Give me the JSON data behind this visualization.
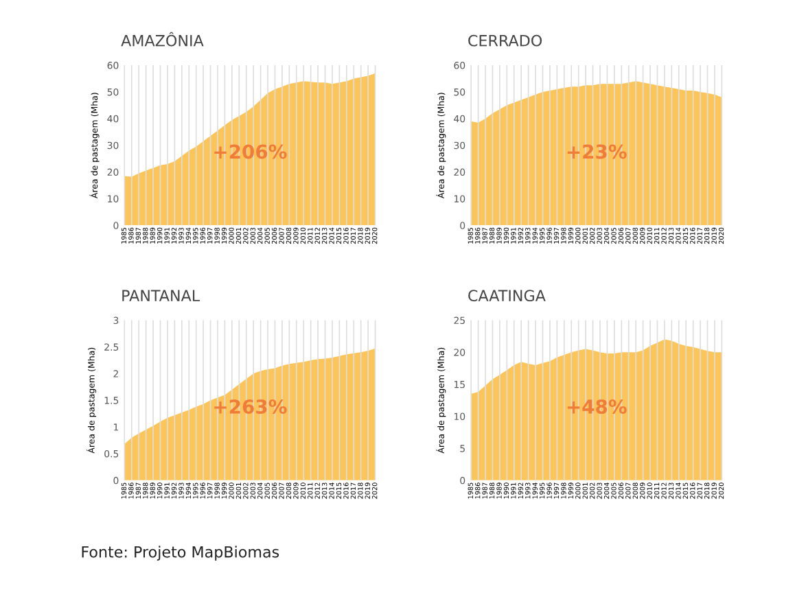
{
  "chart_data": [
    {
      "type": "area",
      "title": "AMAZÔNIA",
      "ylabel": "Área de pastagem (Mha)",
      "categories": [
        "1985",
        "1986",
        "1987",
        "1988",
        "1989",
        "1990",
        "1991",
        "1992",
        "1993",
        "1994",
        "1995",
        "1996",
        "1997",
        "1998",
        "1999",
        "2000",
        "2001",
        "2002",
        "2003",
        "2004",
        "2005",
        "2006",
        "2007",
        "2008",
        "2009",
        "2010",
        "2011",
        "2012",
        "2013",
        "2014",
        "2015",
        "2016",
        "2017",
        "2018",
        "2019",
        "2020"
      ],
      "series": [
        {
          "color": "#fcc55a",
          "values": [
            18.5,
            18.2,
            19.5,
            20.5,
            21.5,
            22.5,
            23,
            24,
            26,
            28,
            29.5,
            31.5,
            33.5,
            35.5,
            37.5,
            39.5,
            41,
            42.5,
            44.5,
            47,
            49.5,
            51,
            52,
            53,
            53.5,
            54,
            53.8,
            53.5,
            53.5,
            53,
            53.5,
            54,
            55,
            55.5,
            56,
            57
          ]
        }
      ],
      "ylim": [
        0,
        60
      ],
      "yticks": [
        0,
        10,
        20,
        30,
        40,
        50,
        60
      ],
      "grid": "x",
      "annotations": [
        "+206%"
      ]
    },
    {
      "type": "area",
      "title": "CERRADO",
      "ylabel": "Área de pastagem (Mha)",
      "categories": [
        "1985",
        "1986",
        "1987",
        "1988",
        "1989",
        "1990",
        "1991",
        "1992",
        "1993",
        "1994",
        "1995",
        "1996",
        "1997",
        "1998",
        "1999",
        "2000",
        "2001",
        "2002",
        "2003",
        "2004",
        "2005",
        "2006",
        "2007",
        "2008",
        "2009",
        "2010",
        "2011",
        "2012",
        "2013",
        "2014",
        "2015",
        "2016",
        "2017",
        "2018",
        "2019",
        "2020"
      ],
      "series": [
        {
          "color": "#fcc55a",
          "values": [
            39,
            38.5,
            40,
            42,
            43.5,
            45,
            46,
            47,
            48,
            49,
            50,
            50.5,
            51,
            51.5,
            52,
            52,
            52.5,
            52.5,
            53,
            53,
            53,
            53,
            53.5,
            54,
            53.5,
            53,
            52.5,
            52,
            51.5,
            51,
            50.5,
            50.5,
            50,
            49.5,
            49,
            48
          ]
        }
      ],
      "ylim": [
        0,
        60
      ],
      "yticks": [
        0,
        10,
        20,
        30,
        40,
        50,
        60
      ],
      "grid": "x",
      "annotations": [
        "+23%"
      ]
    },
    {
      "type": "area",
      "title": "PANTANAL",
      "ylabel": "Área de pastagem (Mha)",
      "categories": [
        "1985",
        "1986",
        "1987",
        "1988",
        "1989",
        "1990",
        "1991",
        "1992",
        "1993",
        "1994",
        "1995",
        "1996",
        "1997",
        "1998",
        "1999",
        "2000",
        "2001",
        "2002",
        "2003",
        "2004",
        "2005",
        "2006",
        "2007",
        "2008",
        "2009",
        "2010",
        "2011",
        "2012",
        "2013",
        "2014",
        "2015",
        "2016",
        "2017",
        "2018",
        "2019",
        "2020"
      ],
      "series": [
        {
          "color": "#fcc55a",
          "values": [
            0.68,
            0.8,
            0.88,
            0.95,
            1.02,
            1.1,
            1.17,
            1.22,
            1.27,
            1.32,
            1.38,
            1.43,
            1.5,
            1.55,
            1.6,
            1.7,
            1.8,
            1.9,
            2.0,
            2.05,
            2.08,
            2.1,
            2.15,
            2.18,
            2.2,
            2.22,
            2.25,
            2.27,
            2.28,
            2.3,
            2.33,
            2.36,
            2.38,
            2.4,
            2.43,
            2.47
          ]
        }
      ],
      "ylim": [
        0,
        3
      ],
      "yticks": [
        0,
        0.5,
        1,
        1.5,
        2,
        2.5,
        3
      ],
      "grid": "x",
      "annotations": [
        "+263%"
      ]
    },
    {
      "type": "area",
      "title": "CAATINGA",
      "ylabel": "Área de pastagem (Mha)",
      "categories": [
        "1985",
        "1986",
        "1987",
        "1988",
        "1989",
        "1990",
        "1991",
        "1992",
        "1993",
        "1994",
        "1995",
        "1996",
        "1997",
        "1998",
        "1999",
        "2000",
        "2001",
        "2002",
        "2003",
        "2004",
        "2005",
        "2006",
        "2007",
        "2008",
        "2009",
        "2010",
        "2011",
        "2012",
        "2013",
        "2014",
        "2015",
        "2016",
        "2017",
        "2018",
        "2019",
        "2020"
      ],
      "series": [
        {
          "color": "#fcc55a",
          "values": [
            13.5,
            13.8,
            14.8,
            15.8,
            16.5,
            17.2,
            18,
            18.5,
            18.2,
            18,
            18.3,
            18.6,
            19.2,
            19.6,
            20,
            20.3,
            20.5,
            20.3,
            20,
            19.8,
            19.8,
            20,
            20,
            20,
            20.3,
            21,
            21.5,
            22,
            21.8,
            21.3,
            21,
            20.8,
            20.5,
            20.2,
            20,
            20
          ]
        }
      ],
      "ylim": [
        0,
        25
      ],
      "yticks": [
        0,
        5,
        10,
        15,
        20,
        25
      ],
      "grid": "x",
      "annotations": [
        "+48%",
        "Fonte: Projeto MapBiomas"
      ]
    }
  ]
}
